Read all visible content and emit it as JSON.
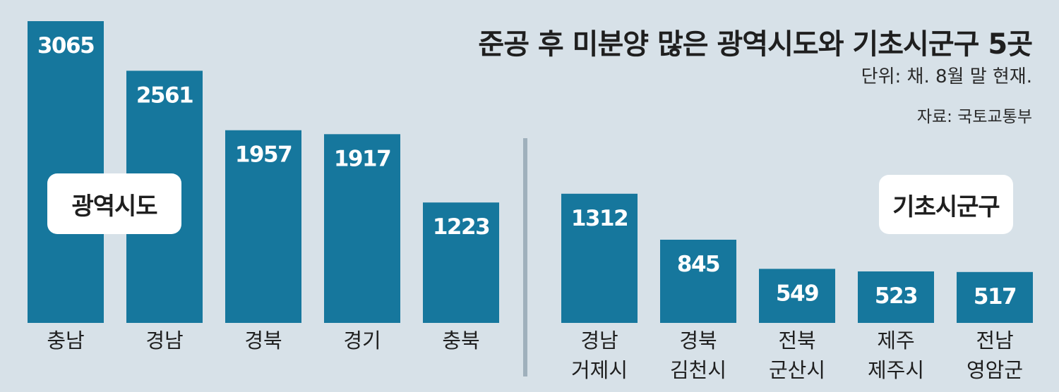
{
  "title": "준공 후 미분양 많은 광역시도와 기초시군구 5곳",
  "unit": "단위: 채. 8월 말 현재.",
  "source": "자료: 국토교통부",
  "colors": {
    "bar": "#16779d",
    "background": "#d7e1e8",
    "divider": "#9fb0bc"
  },
  "chart_data": [
    {
      "type": "bar",
      "group_label": "광역시도",
      "categories": [
        "충남",
        "경남",
        "경북",
        "경기",
        "충북"
      ],
      "values": [
        3065,
        2561,
        1957,
        1917,
        1223
      ],
      "ylim": [
        0,
        3065
      ]
    },
    {
      "type": "bar",
      "group_label": "기초시군구",
      "categories": [
        [
          "경남",
          "거제시"
        ],
        [
          "경북",
          "김천시"
        ],
        [
          "전북",
          "군산시"
        ],
        [
          "제주",
          "제주시"
        ],
        [
          "전남",
          "영암군"
        ]
      ],
      "values": [
        1312,
        845,
        549,
        523,
        517
      ],
      "ylim": [
        0,
        3065
      ]
    }
  ]
}
